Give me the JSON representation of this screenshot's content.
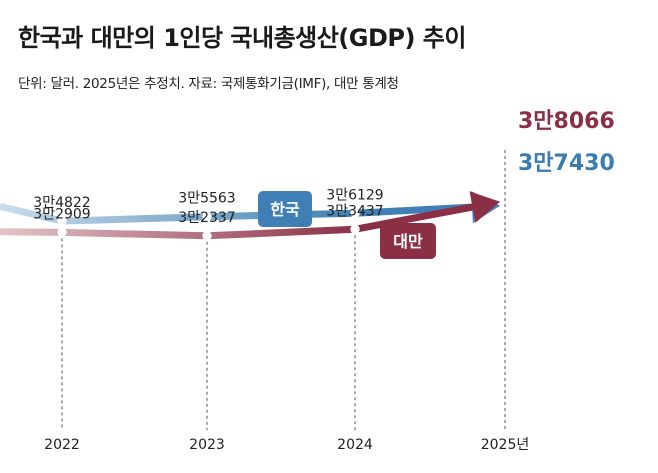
{
  "title": "한국과 대만의 1인당 국내총생산(GDP) 추이",
  "subtitle": "단위: 달러. 2025년은 추정치. 자료: 국제통화기금(IMF), 대만 통계청",
  "colors": {
    "korea": "#3f7fb5",
    "korea_light": "#c9dcea",
    "taiwan": "#8b2f45",
    "taiwan_light": "#e3c3c8",
    "end_korea": "#3a7bb0",
    "end_taiwan": "#8b2f45"
  },
  "chart_data": {
    "type": "line",
    "categories": [
      "2022",
      "2023",
      "2024",
      "2025년"
    ],
    "x_tick_labels": [
      "2022",
      "2023",
      "2024",
      "2025년"
    ],
    "ylim": [
      27000,
      40000
    ],
    "grid": false,
    "series": [
      {
        "name": "한국",
        "key": "korea",
        "values": [
          34822,
          35563,
          36129,
          37430
        ],
        "labels": [
          "3만4822",
          "3만5563",
          "3만6129",
          "3만7430"
        ],
        "prior_value": 37300
      },
      {
        "name": "대만",
        "key": "taiwan",
        "values": [
          32909,
          32337,
          33437,
          38066
        ],
        "labels": [
          "3만2909",
          "3만2337",
          "3만3437",
          "3만8066"
        ],
        "prior_value": 33000
      }
    ]
  }
}
